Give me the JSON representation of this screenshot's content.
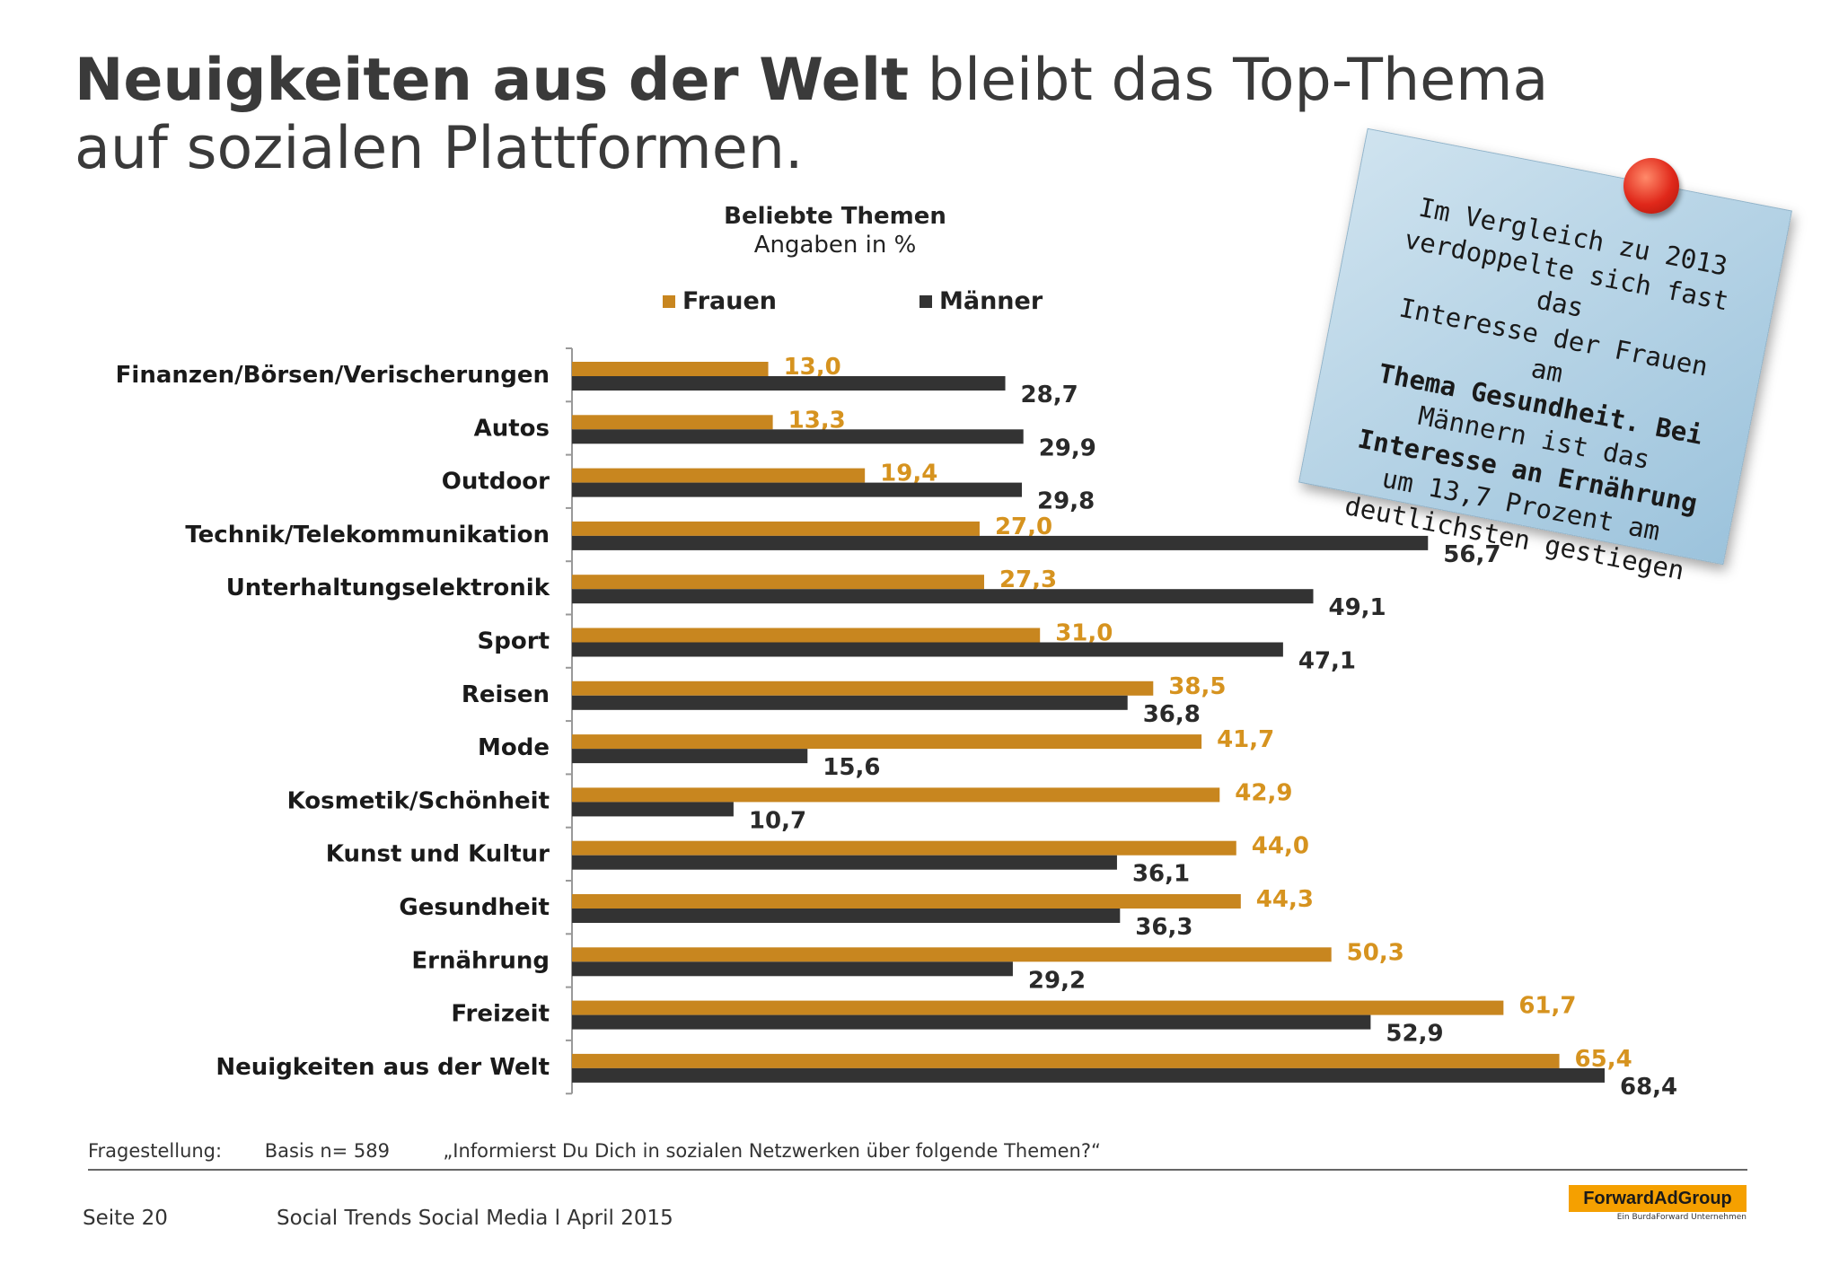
{
  "headline": {
    "bold": "Neuigkeiten aus der Welt",
    "rest": " bleibt das Top-Thema auf sozialen Plattformen."
  },
  "chart_data": {
    "type": "bar",
    "orientation": "horizontal",
    "title": "Beliebte Themen",
    "subtitle": "Angaben in %",
    "categories": [
      "Finanzen/Börsen/Verischerungen",
      "Autos",
      "Outdoor",
      "Technik/Telekommunikation",
      "Unterhaltungselektronik",
      "Sport",
      "Reisen",
      "Mode",
      "Kosmetik/Schönheit",
      "Kunst und Kultur",
      "Gesundheit",
      "Ernährung",
      "Freizeit",
      "Neuigkeiten aus der Welt"
    ],
    "series": [
      {
        "name": "Frauen",
        "color": "#c8861f",
        "values": [
          13.0,
          13.3,
          19.4,
          27.0,
          27.3,
          31.0,
          38.5,
          41.7,
          42.9,
          44.0,
          44.3,
          50.3,
          61.7,
          65.4
        ],
        "labels": [
          "13,0",
          "13,3",
          "19,4",
          "27,0",
          "27,3",
          "31,0",
          "38,5",
          "41,7",
          "42,9",
          "44,0",
          "44,3",
          "50,3",
          "61,7",
          "65,4"
        ]
      },
      {
        "name": "Männer",
        "color": "#333333",
        "values": [
          28.7,
          29.9,
          29.8,
          56.7,
          49.1,
          47.1,
          36.8,
          15.6,
          10.7,
          36.1,
          36.3,
          29.2,
          52.9,
          68.4
        ],
        "labels": [
          "28,7",
          "29,9",
          "29,8",
          "56,7",
          "49,1",
          "47,1",
          "36,8",
          "15,6",
          "10,7",
          "36,1",
          "36,3",
          "29,2",
          "52,9",
          "68,4"
        ]
      }
    ],
    "xlim": [
      0,
      70
    ],
    "legend_position": "top"
  },
  "note": {
    "text_lines": [
      "Im Vergleich zu 2013",
      "verdoppelte sich fast das",
      "Interesse der Frauen am",
      "Thema Gesundheit. Bei",
      "Männern ist das",
      "Interesse an Ernährung",
      "um 13,7 Prozent am",
      "deutlichsten gestiegen"
    ]
  },
  "footer": {
    "question_label": "Fragestellung:",
    "basis": "Basis n= 589",
    "question": "„Informierst Du Dich in sozialen Netzwerken über folgende Themen?“",
    "page": "Seite 20",
    "source": "Social Trends Social Media l April 2015",
    "logo": "ForwardAdGroup",
    "logo_sub": "Ein BurdaForward Unternehmen"
  }
}
